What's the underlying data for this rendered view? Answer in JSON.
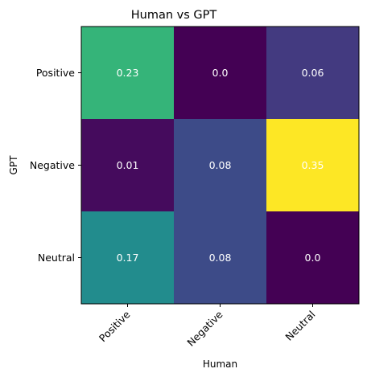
{
  "chart_data": {
    "type": "heatmap",
    "title": "Human vs GPT",
    "xlabel": "Human",
    "ylabel": "GPT",
    "x_categories": [
      "Positive",
      "Negative",
      "Neutral"
    ],
    "y_categories": [
      "Positive",
      "Negative",
      "Neutral"
    ],
    "values": [
      [
        0.23,
        0.0,
        0.06
      ],
      [
        0.01,
        0.08,
        0.35
      ],
      [
        0.17,
        0.08,
        0.0
      ]
    ],
    "value_labels": [
      [
        "0.23",
        "0.0",
        "0.06"
      ],
      [
        "0.01",
        "0.08",
        "0.35"
      ],
      [
        "0.17",
        "0.08",
        "0.0"
      ]
    ],
    "colormap": "viridis",
    "color_range": [
      0.0,
      0.35
    ],
    "label_color": "#ffffff",
    "grid": false,
    "legend": "none"
  }
}
